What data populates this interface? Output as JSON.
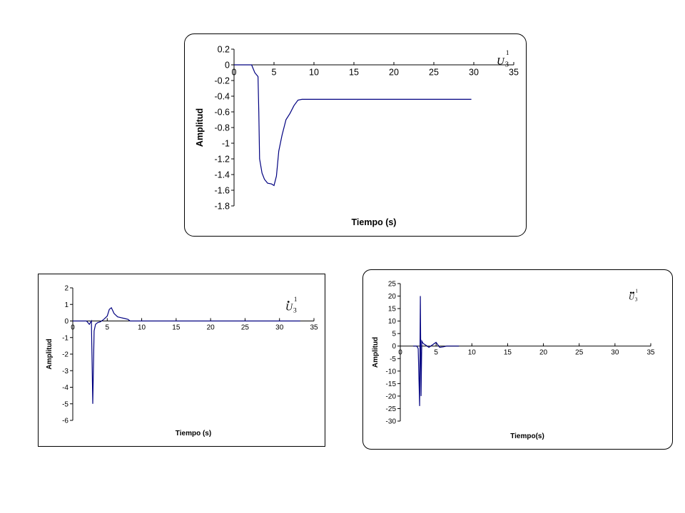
{
  "charts": [
    {
      "legend_symbol": "U",
      "legend_subscript": "3",
      "legend_superscript": "1",
      "legend_dots": 0,
      "chart_data": {
        "type": "line",
        "title": "",
        "xlabel": "Tiempo (s)",
        "ylabel": "Amplitud",
        "xlim": [
          0,
          35
        ],
        "ylim": [
          -1.8,
          0.2
        ],
        "xticks": [
          0,
          5,
          10,
          15,
          20,
          25,
          30,
          35
        ],
        "yticks": [
          0.2,
          0,
          -0.2,
          -0.4,
          -0.6,
          -0.8,
          -1,
          -1.2,
          -1.4,
          -1.6,
          -1.8
        ],
        "line_color": "#000080",
        "series": [
          {
            "x": [
              0,
              2.2,
              2.6,
              3.0,
              3.1,
              3.2,
              3.5,
              3.8,
              4.2,
              4.7,
              5.0,
              5.3,
              5.6,
              6.0,
              6.5,
              7.0,
              7.5,
              8.0,
              8.5,
              10,
              15,
              20,
              25,
              29.7
            ],
            "y": [
              0,
              0,
              -0.1,
              -0.15,
              -0.6,
              -1.2,
              -1.38,
              -1.46,
              -1.51,
              -1.52,
              -1.54,
              -1.42,
              -1.1,
              -0.9,
              -0.7,
              -0.62,
              -0.52,
              -0.45,
              -0.44,
              -0.44,
              -0.44,
              -0.44,
              -0.44,
              -0.44
            ]
          }
        ]
      }
    },
    {
      "legend_symbol": "U",
      "legend_subscript": "3",
      "legend_superscript": "1",
      "legend_dots": 1,
      "chart_data": {
        "type": "line",
        "title": "",
        "xlabel": "Tiempo (s)",
        "ylabel": "Amplitud",
        "xlim": [
          0,
          35
        ],
        "ylim": [
          -6,
          2
        ],
        "xticks": [
          0,
          5,
          10,
          15,
          20,
          25,
          30,
          35
        ],
        "yticks": [
          2,
          1,
          0,
          -1,
          -2,
          -3,
          -4,
          -5,
          -6
        ],
        "line_color": "#000080",
        "series": [
          {
            "x": [
              0,
              2.0,
              2.4,
              2.7,
              2.9,
              3.1,
              3.3,
              3.6,
              4.0,
              4.5,
              5.0,
              5.3,
              5.6,
              6.0,
              6.5,
              7.0,
              7.5,
              8.0,
              8.3,
              9,
              15,
              20,
              25,
              30,
              33
            ],
            "y": [
              0,
              0,
              -0.2,
              0,
              -5.0,
              -0.6,
              -0.2,
              -0.1,
              -0.05,
              0.1,
              0.3,
              0.7,
              0.8,
              0.45,
              0.25,
              0.2,
              0.15,
              0.1,
              0,
              0,
              0,
              0,
              0,
              0,
              0
            ]
          }
        ]
      }
    },
    {
      "legend_symbol": "U",
      "legend_subscript": "3",
      "legend_superscript": "1",
      "legend_dots": 2,
      "chart_data": {
        "type": "line",
        "title": "",
        "xlabel": "Tiempo(s)",
        "ylabel": "Amplitud",
        "xlim": [
          0,
          35
        ],
        "ylim": [
          -30,
          25
        ],
        "xticks": [
          0,
          5,
          10,
          15,
          20,
          25,
          30,
          35
        ],
        "yticks": [
          25,
          20,
          15,
          10,
          5,
          0,
          -5,
          -10,
          -15,
          -20,
          -25,
          -30
        ],
        "line_color": "#000080",
        "series": [
          {
            "x": [
              1.8,
              2.3,
              2.5,
              2.7,
              2.8,
              2.9,
              3.0,
              3.2,
              3.5,
              4.0,
              4.5,
              5.0,
              5.5,
              6.0,
              6.5,
              7.0,
              7.7,
              8.2
            ],
            "y": [
              0,
              0,
              -1,
              -24,
              20,
              -20,
              2,
              1,
              0.5,
              -0.5,
              0.5,
              1.5,
              -0.5,
              -0.3,
              0,
              0,
              0,
              0
            ]
          }
        ]
      }
    }
  ]
}
